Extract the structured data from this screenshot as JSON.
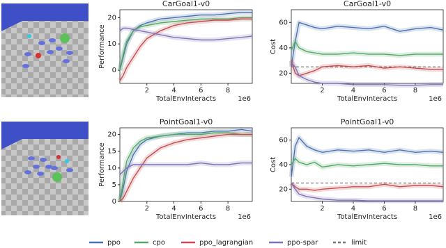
{
  "legend": [
    {
      "name": "ppo",
      "color": "#4c72b0"
    },
    {
      "name": "cpo",
      "color": "#55a868"
    },
    {
      "name": "ppo_lagrangian",
      "color": "#c44e52"
    },
    {
      "name": "ppo-spar",
      "color": "#8172b2"
    },
    {
      "name": "limit",
      "color": "#777777"
    }
  ],
  "chart_data": [
    {
      "type": "line",
      "title": "CarGoal1-v0",
      "xlabel": "TotalEnvInteracts",
      "ylabel": "Performance",
      "x_offset_label": "1e6",
      "x": [
        0,
        0.25,
        0.5,
        1,
        1.5,
        2,
        3,
        4,
        5,
        6,
        7,
        8,
        9,
        9.8
      ],
      "xlim": [
        0,
        9.8
      ],
      "xticks": [
        2,
        4,
        6,
        8
      ],
      "ylim": [
        -5,
        23
      ],
      "yticks": [
        0,
        10,
        20
      ],
      "series": [
        {
          "color": "#4c72b0",
          "values": [
            0,
            5,
            10,
            15,
            17,
            18,
            19.5,
            20,
            20.5,
            21,
            21,
            21.5,
            22,
            22
          ]
        },
        {
          "color": "#55a868",
          "values": [
            0,
            6,
            11,
            15,
            16.5,
            17,
            18,
            18.5,
            19,
            19.5,
            19.5,
            19.5,
            20,
            20
          ]
        },
        {
          "color": "#c44e52",
          "values": [
            -4,
            -2,
            1,
            5,
            9,
            12,
            15,
            17,
            18,
            18.5,
            19,
            19,
            19.5,
            19.5
          ]
        },
        {
          "color": "#8172b2",
          "values": [
            15,
            16,
            16,
            15.5,
            15,
            14.5,
            13.5,
            12.5,
            12,
            11.5,
            11.5,
            12,
            12.5,
            13
          ]
        }
      ]
    },
    {
      "type": "line",
      "title": "CarGoal1-v0",
      "xlabel": "TotalEnvInteracts",
      "ylabel": "Cost",
      "x_offset_label": "1e6",
      "x": [
        0,
        0.25,
        0.5,
        1,
        1.5,
        2,
        3,
        4,
        5,
        6,
        7,
        8,
        9,
        9.8
      ],
      "xlim": [
        0,
        9.8
      ],
      "xticks": [
        2,
        4,
        6,
        8
      ],
      "ylim": [
        12,
        70
      ],
      "yticks": [
        20,
        40,
        60
      ],
      "limit": 25,
      "series": [
        {
          "color": "#4c72b0",
          "values": [
            25,
            45,
            60,
            58,
            56,
            55,
            57,
            56,
            55,
            57,
            53,
            55,
            56,
            54
          ]
        },
        {
          "color": "#55a868",
          "values": [
            38,
            45,
            40,
            37,
            36,
            35,
            35,
            36,
            35,
            35,
            34,
            35,
            35,
            35
          ]
        },
        {
          "color": "#c44e52",
          "values": [
            30,
            20,
            18,
            20,
            22,
            25,
            26,
            25,
            26,
            24,
            25,
            24,
            23,
            23
          ]
        },
        {
          "color": "#8172b2",
          "values": [
            28,
            25,
            18,
            15,
            13,
            12,
            12,
            11,
            11,
            11,
            10.5,
            10.5,
            11,
            11
          ]
        }
      ]
    },
    {
      "type": "line",
      "title": "PointGoal1-v0",
      "xlabel": "TotalEnvInteracts",
      "ylabel": "Performance",
      "x_offset_label": "1e6",
      "x": [
        0,
        0.25,
        0.5,
        1,
        1.5,
        2,
        3,
        4,
        5,
        6,
        7,
        8,
        9,
        9.8
      ],
      "xlim": [
        0,
        9.8
      ],
      "xticks": [
        2,
        4,
        6,
        8
      ],
      "ylim": [
        0,
        22
      ],
      "yticks": [
        0,
        5,
        10,
        15,
        20
      ],
      "series": [
        {
          "color": "#4c72b0",
          "values": [
            0,
            4,
            9,
            14,
            17,
            18.5,
            19.5,
            20,
            20.5,
            20.5,
            21,
            21,
            21.5,
            21
          ]
        },
        {
          "color": "#55a868",
          "values": [
            0,
            6,
            12,
            16,
            18,
            19,
            19.5,
            20,
            20,
            20,
            20.5,
            20.5,
            20,
            20
          ]
        },
        {
          "color": "#c44e52",
          "values": [
            0,
            1,
            3,
            7,
            10,
            13,
            16,
            17.5,
            18.5,
            19,
            19.5,
            20,
            20,
            20
          ]
        },
        {
          "color": "#8172b2",
          "values": [
            8,
            9,
            10,
            11,
            11,
            11,
            11,
            11,
            11,
            11.5,
            11,
            11,
            11.5,
            11.5
          ]
        }
      ]
    },
    {
      "type": "line",
      "title": "PointGoal1-v0",
      "xlabel": "TotalEnvInteracts",
      "ylabel": "Cost",
      "x_offset_label": "1e6",
      "x": [
        0,
        0.25,
        0.5,
        1,
        1.5,
        2,
        3,
        4,
        5,
        6,
        7,
        8,
        9,
        9.8
      ],
      "xlim": [
        0,
        9.8
      ],
      "xticks": [
        2,
        4,
        6,
        8
      ],
      "ylim": [
        10,
        70
      ],
      "yticks": [
        20,
        40,
        60
      ],
      "limit": 25,
      "series": [
        {
          "color": "#4c72b0",
          "values": [
            30,
            55,
            62,
            55,
            52,
            50,
            52,
            51,
            52,
            50,
            52,
            50,
            51,
            50
          ]
        },
        {
          "color": "#55a868",
          "values": [
            40,
            45,
            42,
            40,
            42,
            38,
            40,
            39,
            40,
            41,
            40,
            40,
            39,
            39
          ]
        },
        {
          "color": "#c44e52",
          "values": [
            25,
            22,
            20,
            20,
            19,
            20,
            21,
            22,
            22,
            24,
            22,
            23,
            23,
            22
          ]
        },
        {
          "color": "#8172b2",
          "values": [
            25,
            20,
            16,
            14,
            13,
            12,
            11,
            11,
            10.5,
            10.5,
            10.5,
            10.5,
            10.5,
            10.5
          ]
        }
      ]
    }
  ]
}
